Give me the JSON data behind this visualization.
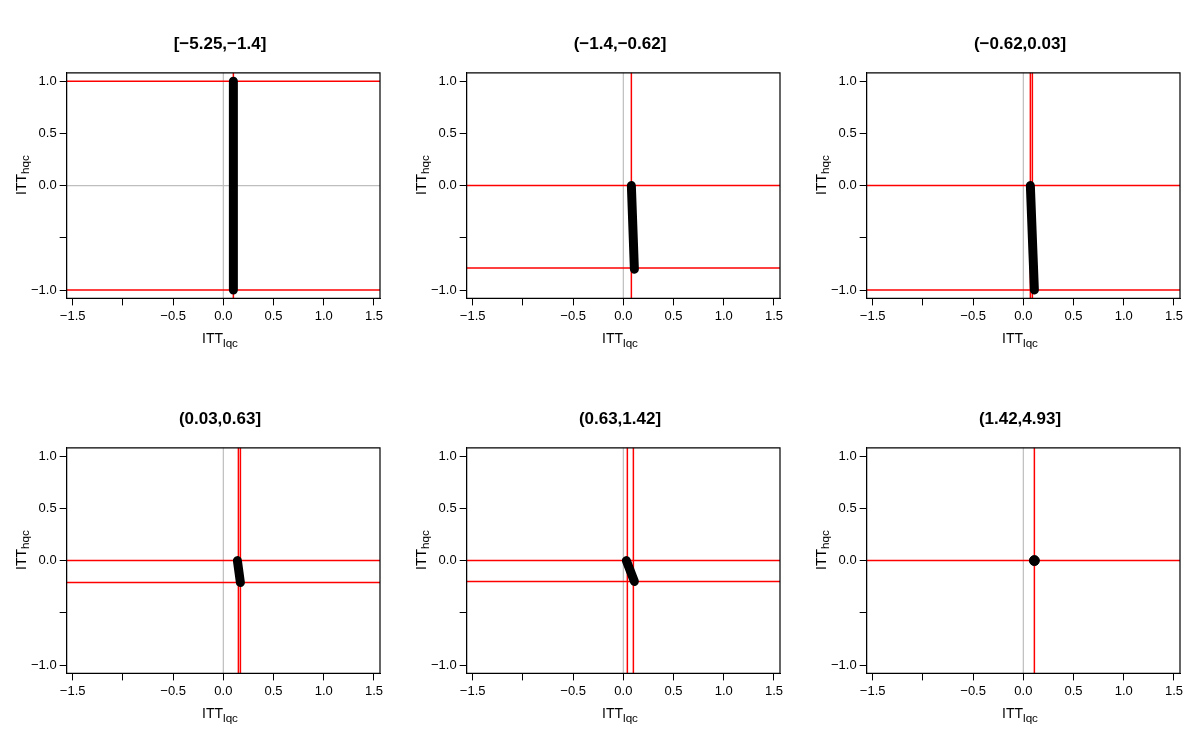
{
  "chart_data": [
    {
      "type": "line",
      "title": "[−5.25,−1.4]",
      "xlabel": "ITT$_{lqc}$",
      "ylabel": "ITT$_{hqc}$",
      "xlim": [
        -1.56,
        1.56
      ],
      "ylim": [
        -1.08,
        1.08
      ],
      "xticks": [
        {
          "value": -1.5,
          "label": "−1.5"
        },
        {
          "value": -1,
          "label": null
        },
        {
          "value": -0.5,
          "label": "−0.5"
        },
        {
          "value": 0,
          "label": "0.0"
        },
        {
          "value": 0.5,
          "label": "0.5"
        },
        {
          "value": 1,
          "label": "1.0"
        },
        {
          "value": 1.5,
          "label": "1.5"
        }
      ],
      "yticks": [
        {
          "value": -1,
          "label": "−1.0"
        },
        {
          "value": -0.5,
          "label": null
        },
        {
          "value": 0,
          "label": "0.0"
        },
        {
          "value": 0.5,
          "label": "0.5"
        },
        {
          "value": 1,
          "label": "1.0"
        }
      ],
      "grid": false,
      "legend": false,
      "marker": "none",
      "line_style": "solid",
      "series": [
        {
          "color": "#000000",
          "x": [
            0.1,
            0.1
          ],
          "values": [
            1,
            -1
          ]
        }
      ],
      "ref_lines": [
        {
          "axis": "x",
          "value": 0,
          "color": "#bebebe"
        },
        {
          "axis": "y",
          "value": 0,
          "color": "#bebebe"
        },
        {
          "axis": "x",
          "value": 0.1,
          "color": "#ff0000"
        },
        {
          "axis": "y",
          "value": 1,
          "color": "#ff0000"
        },
        {
          "axis": "y",
          "value": -1,
          "color": "#ff0000"
        }
      ]
    },
    {
      "type": "line",
      "title": "(−1.4,−0.62]",
      "xlabel": "ITT$_{lqc}$",
      "ylabel": "ITT$_{hqc}$",
      "xlim": [
        -1.56,
        1.56
      ],
      "ylim": [
        -1.08,
        1.08
      ],
      "xticks": [
        {
          "value": -1.5,
          "label": "−1.5"
        },
        {
          "value": -1,
          "label": null
        },
        {
          "value": -0.5,
          "label": "−0.5"
        },
        {
          "value": 0,
          "label": "0.0"
        },
        {
          "value": 0.5,
          "label": "0.5"
        },
        {
          "value": 1,
          "label": "1.0"
        },
        {
          "value": 1.5,
          "label": "1.5"
        }
      ],
      "yticks": [
        {
          "value": -1,
          "label": "−1.0"
        },
        {
          "value": -0.5,
          "label": null
        },
        {
          "value": 0,
          "label": "0.0"
        },
        {
          "value": 0.5,
          "label": "0.5"
        },
        {
          "value": 1,
          "label": "1.0"
        }
      ],
      "grid": false,
      "legend": false,
      "marker": "none",
      "line_style": "solid",
      "series": [
        {
          "color": "#000000",
          "x": [
            0.08,
            0.11
          ],
          "values": [
            0,
            -0.8
          ]
        }
      ],
      "ref_lines": [
        {
          "axis": "x",
          "value": 0,
          "color": "#bebebe"
        },
        {
          "axis": "x",
          "value": 0.08,
          "color": "#ff0000"
        },
        {
          "axis": "y",
          "value": 0,
          "color": "#ff0000"
        },
        {
          "axis": "y",
          "value": -0.79,
          "color": "#ff0000"
        }
      ]
    },
    {
      "type": "line",
      "title": "(−0.62,0.03]",
      "xlabel": "ITT$_{lqc}$",
      "ylabel": "ITT$_{hqc}$",
      "xlim": [
        -1.56,
        1.56
      ],
      "ylim": [
        -1.08,
        1.08
      ],
      "xticks": [
        {
          "value": -1.5,
          "label": "−1.5"
        },
        {
          "value": -1,
          "label": null
        },
        {
          "value": -0.5,
          "label": "−0.5"
        },
        {
          "value": 0,
          "label": "0.0"
        },
        {
          "value": 0.5,
          "label": "0.5"
        },
        {
          "value": 1,
          "label": "1.0"
        },
        {
          "value": 1.5,
          "label": "1.5"
        }
      ],
      "yticks": [
        {
          "value": -1,
          "label": "−1.0"
        },
        {
          "value": -0.5,
          "label": null
        },
        {
          "value": 0,
          "label": "0.0"
        },
        {
          "value": 0.5,
          "label": "0.5"
        },
        {
          "value": 1,
          "label": "1.0"
        }
      ],
      "grid": false,
      "legend": false,
      "marker": "none",
      "line_style": "solid",
      "series": [
        {
          "color": "#000000",
          "x": [
            0.07,
            0.11
          ],
          "values": [
            0,
            -1
          ]
        }
      ],
      "ref_lines": [
        {
          "axis": "x",
          "value": 0,
          "color": "#bebebe"
        },
        {
          "axis": "x",
          "value": 0.07,
          "color": "#ff0000"
        },
        {
          "axis": "x",
          "value": 0.09,
          "color": "#ff0000"
        },
        {
          "axis": "y",
          "value": 0,
          "color": "#ff0000"
        },
        {
          "axis": "y",
          "value": -1,
          "color": "#ff0000"
        }
      ]
    },
    {
      "type": "line",
      "title": "(0.03,0.63]",
      "xlabel": "ITT$_{lqc}$",
      "ylabel": "ITT$_{hqc}$",
      "xlim": [
        -1.56,
        1.56
      ],
      "ylim": [
        -1.08,
        1.08
      ],
      "xticks": [
        {
          "value": -1.5,
          "label": "−1.5"
        },
        {
          "value": -1,
          "label": null
        },
        {
          "value": -0.5,
          "label": "−0.5"
        },
        {
          "value": 0,
          "label": "0.0"
        },
        {
          "value": 0.5,
          "label": "0.5"
        },
        {
          "value": 1,
          "label": "1.0"
        },
        {
          "value": 1.5,
          "label": "1.5"
        }
      ],
      "yticks": [
        {
          "value": -1,
          "label": "−1.0"
        },
        {
          "value": -0.5,
          "label": null
        },
        {
          "value": 0,
          "label": "0.0"
        },
        {
          "value": 0.5,
          "label": "0.5"
        },
        {
          "value": 1,
          "label": "1.0"
        }
      ],
      "grid": false,
      "legend": false,
      "marker": "none",
      "line_style": "solid",
      "series": [
        {
          "color": "#000000",
          "x": [
            0.14,
            0.17
          ],
          "values": [
            0,
            -0.21
          ]
        }
      ],
      "ref_lines": [
        {
          "axis": "x",
          "value": 0,
          "color": "#bebebe"
        },
        {
          "axis": "x",
          "value": 0.15,
          "color": "#ff0000"
        },
        {
          "axis": "x",
          "value": 0.17,
          "color": "#ff0000"
        },
        {
          "axis": "y",
          "value": 0,
          "color": "#ff0000"
        },
        {
          "axis": "y",
          "value": -0.21,
          "color": "#ff0000"
        }
      ]
    },
    {
      "type": "line",
      "title": "(0.63,1.42]",
      "xlabel": "ITT$_{lqc}$",
      "ylabel": "ITT$_{hqc}$",
      "xlim": [
        -1.56,
        1.56
      ],
      "ylim": [
        -1.08,
        1.08
      ],
      "xticks": [
        {
          "value": -1.5,
          "label": "−1.5"
        },
        {
          "value": -1,
          "label": null
        },
        {
          "value": -0.5,
          "label": "−0.5"
        },
        {
          "value": 0,
          "label": "0.0"
        },
        {
          "value": 0.5,
          "label": "0.5"
        },
        {
          "value": 1,
          "label": "1.0"
        },
        {
          "value": 1.5,
          "label": "1.5"
        }
      ],
      "yticks": [
        {
          "value": -1,
          "label": "−1.0"
        },
        {
          "value": -0.5,
          "label": null
        },
        {
          "value": 0,
          "label": "0.0"
        },
        {
          "value": 0.5,
          "label": "0.5"
        },
        {
          "value": 1,
          "label": "1.0"
        }
      ],
      "grid": false,
      "legend": false,
      "marker": "none",
      "line_style": "solid",
      "series": [
        {
          "color": "#000000",
          "x": [
            0.03,
            0.11
          ],
          "values": [
            0,
            -0.2
          ]
        }
      ],
      "ref_lines": [
        {
          "axis": "x",
          "value": 0,
          "color": "#bebebe"
        },
        {
          "axis": "x",
          "value": 0.04,
          "color": "#ff0000"
        },
        {
          "axis": "x",
          "value": 0.1,
          "color": "#ff0000"
        },
        {
          "axis": "y",
          "value": 0,
          "color": "#ff0000"
        },
        {
          "axis": "y",
          "value": -0.2,
          "color": "#ff0000"
        }
      ]
    },
    {
      "type": "scatter",
      "title": "(1.42,4.93]",
      "xlabel": "ITT$_{lqc}$",
      "ylabel": "ITT$_{hqc}$",
      "xlim": [
        -1.56,
        1.56
      ],
      "ylim": [
        -1.08,
        1.08
      ],
      "xticks": [
        {
          "value": -1.5,
          "label": "−1.5"
        },
        {
          "value": -1,
          "label": null
        },
        {
          "value": -0.5,
          "label": "−0.5"
        },
        {
          "value": 0,
          "label": "0.0"
        },
        {
          "value": 0.5,
          "label": "0.5"
        },
        {
          "value": 1,
          "label": "1.0"
        },
        {
          "value": 1.5,
          "label": "1.5"
        }
      ],
      "yticks": [
        {
          "value": -1,
          "label": "−1.0"
        },
        {
          "value": -0.5,
          "label": null
        },
        {
          "value": 0,
          "label": "0.0"
        },
        {
          "value": 0.5,
          "label": "0.5"
        },
        {
          "value": 1,
          "label": "1.0"
        }
      ],
      "grid": false,
      "legend": false,
      "marker": "circle",
      "series": [
        {
          "color": "#000000",
          "x": [
            0.11
          ],
          "values": [
            0
          ]
        }
      ],
      "ref_lines": [
        {
          "axis": "x",
          "value": 0,
          "color": "#bebebe"
        },
        {
          "axis": "x",
          "value": 0.11,
          "color": "#ff0000"
        },
        {
          "axis": "y",
          "value": 0,
          "color": "#ff0000"
        }
      ]
    }
  ]
}
